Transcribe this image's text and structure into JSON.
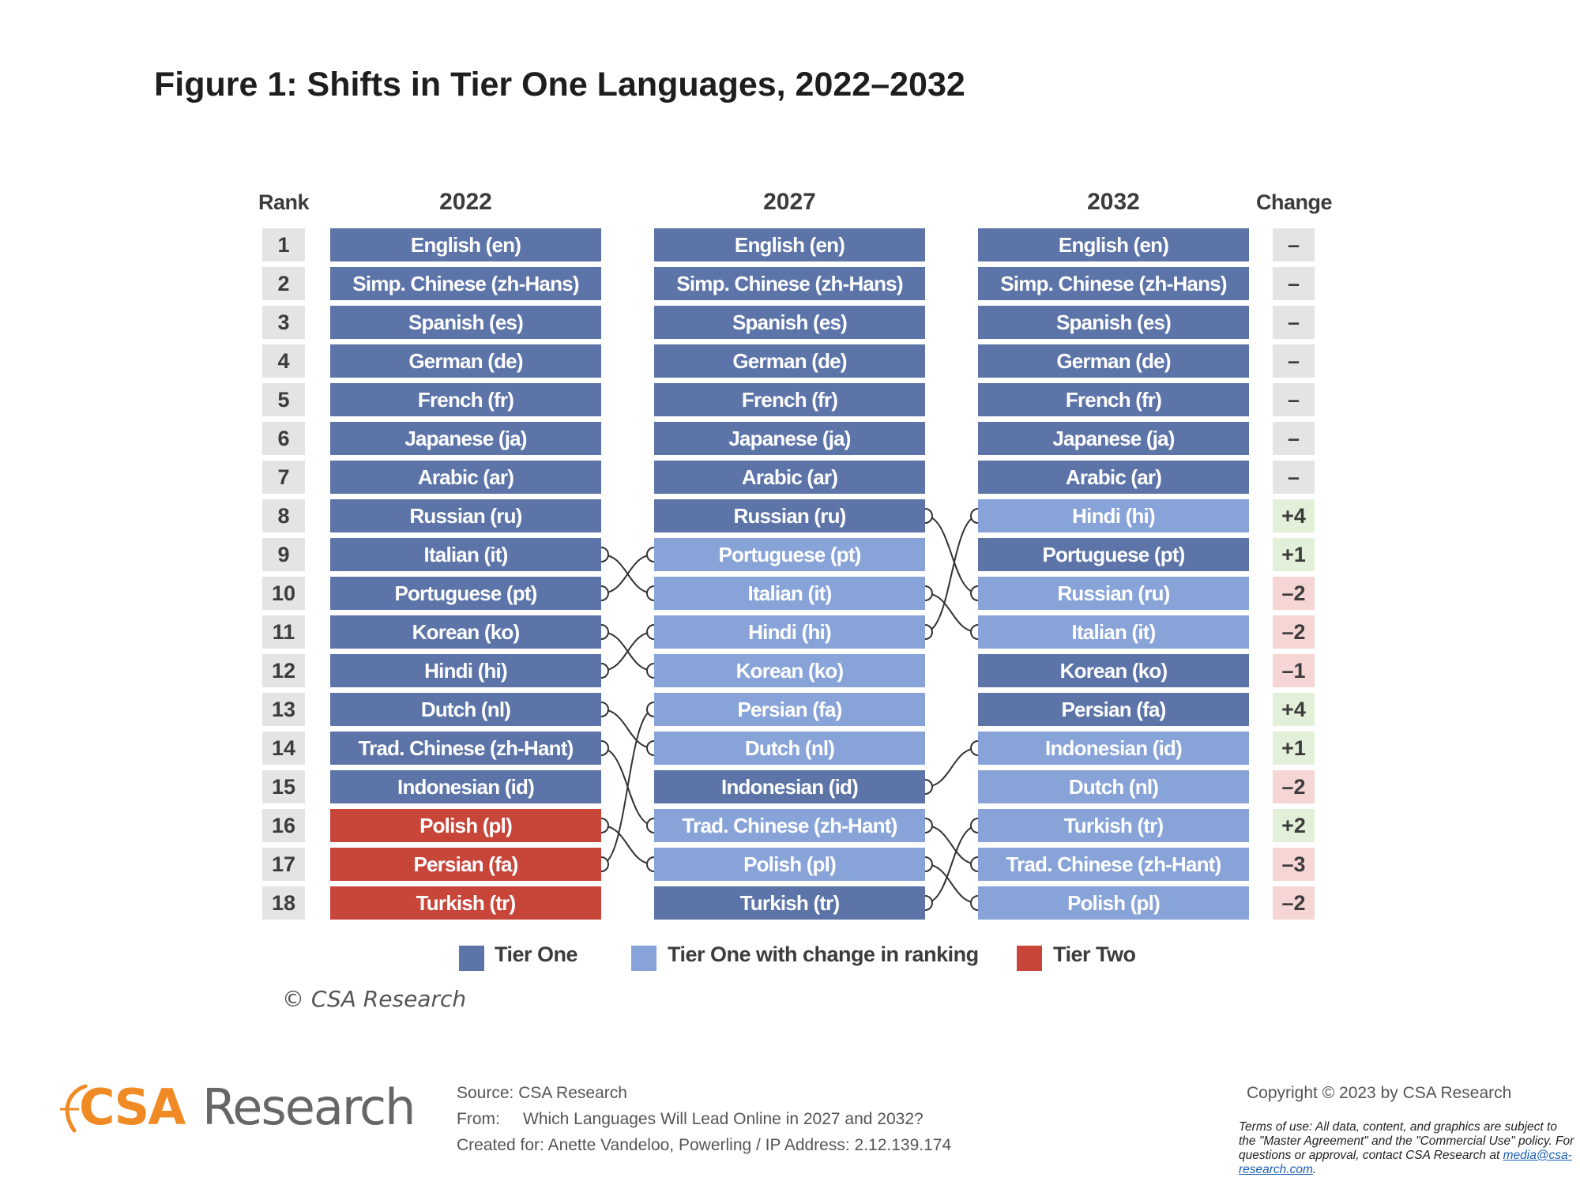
{
  "title": "Figure 1: Shifts in Tier One Languages, 2022–2032",
  "chart_data": {
    "type": "table",
    "headers": {
      "rank": "Rank",
      "col2022": "2022",
      "col2027": "2027",
      "col2032": "2032",
      "change": "Change"
    },
    "ranks": [
      "1",
      "2",
      "3",
      "4",
      "5",
      "6",
      "7",
      "8",
      "9",
      "10",
      "11",
      "12",
      "13",
      "14",
      "15",
      "16",
      "17",
      "18"
    ],
    "col2022": [
      {
        "label": "English (en)",
        "tier": "Tier One"
      },
      {
        "label": "Simp. Chinese (zh-Hans)",
        "tier": "Tier One"
      },
      {
        "label": "Spanish (es)",
        "tier": "Tier One"
      },
      {
        "label": "German (de)",
        "tier": "Tier One"
      },
      {
        "label": "French (fr)",
        "tier": "Tier One"
      },
      {
        "label": "Japanese (ja)",
        "tier": "Tier One"
      },
      {
        "label": "Arabic (ar)",
        "tier": "Tier One"
      },
      {
        "label": "Russian (ru)",
        "tier": "Tier One"
      },
      {
        "label": "Italian (it)",
        "tier": "Tier One"
      },
      {
        "label": "Portuguese (pt)",
        "tier": "Tier One"
      },
      {
        "label": "Korean (ko)",
        "tier": "Tier One"
      },
      {
        "label": "Hindi (hi)",
        "tier": "Tier One"
      },
      {
        "label": "Dutch (nl)",
        "tier": "Tier One"
      },
      {
        "label": "Trad. Chinese (zh-Hant)",
        "tier": "Tier One"
      },
      {
        "label": "Indonesian (id)",
        "tier": "Tier One"
      },
      {
        "label": "Polish (pl)",
        "tier": "Tier Two"
      },
      {
        "label": "Persian (fa)",
        "tier": "Tier Two"
      },
      {
        "label": "Turkish (tr)",
        "tier": "Tier Two"
      }
    ],
    "col2027": [
      {
        "label": "English (en)",
        "tier": "Tier One"
      },
      {
        "label": "Simp. Chinese (zh-Hans)",
        "tier": "Tier One"
      },
      {
        "label": "Spanish (es)",
        "tier": "Tier One"
      },
      {
        "label": "German (de)",
        "tier": "Tier One"
      },
      {
        "label": "French (fr)",
        "tier": "Tier One"
      },
      {
        "label": "Japanese (ja)",
        "tier": "Tier One"
      },
      {
        "label": "Arabic (ar)",
        "tier": "Tier One"
      },
      {
        "label": "Russian (ru)",
        "tier": "Tier One"
      },
      {
        "label": "Portuguese (pt)",
        "tier": "Tier One with change in ranking"
      },
      {
        "label": "Italian (it)",
        "tier": "Tier One with change in ranking"
      },
      {
        "label": "Hindi (hi)",
        "tier": "Tier One with change in ranking"
      },
      {
        "label": "Korean (ko)",
        "tier": "Tier One with change in ranking"
      },
      {
        "label": "Persian (fa)",
        "tier": "Tier One with change in ranking"
      },
      {
        "label": "Dutch (nl)",
        "tier": "Tier One with change in ranking"
      },
      {
        "label": "Indonesian (id)",
        "tier": "Tier One"
      },
      {
        "label": "Trad. Chinese (zh-Hant)",
        "tier": "Tier One with change in ranking"
      },
      {
        "label": "Polish (pl)",
        "tier": "Tier One with change in ranking"
      },
      {
        "label": "Turkish (tr)",
        "tier": "Tier One"
      }
    ],
    "col2032": [
      {
        "label": "English (en)",
        "tier": "Tier One"
      },
      {
        "label": "Simp. Chinese (zh-Hans)",
        "tier": "Tier One"
      },
      {
        "label": "Spanish (es)",
        "tier": "Tier One"
      },
      {
        "label": "German (de)",
        "tier": "Tier One"
      },
      {
        "label": "French (fr)",
        "tier": "Tier One"
      },
      {
        "label": "Japanese (ja)",
        "tier": "Tier One"
      },
      {
        "label": "Arabic (ar)",
        "tier": "Tier One"
      },
      {
        "label": "Hindi (hi)",
        "tier": "Tier One with change in ranking"
      },
      {
        "label": "Portuguese (pt)",
        "tier": "Tier One"
      },
      {
        "label": "Russian (ru)",
        "tier": "Tier One with change in ranking"
      },
      {
        "label": "Italian (it)",
        "tier": "Tier One with change in ranking"
      },
      {
        "label": "Korean (ko)",
        "tier": "Tier One"
      },
      {
        "label": "Persian (fa)",
        "tier": "Tier One"
      },
      {
        "label": "Indonesian (id)",
        "tier": "Tier One with change in ranking"
      },
      {
        "label": "Dutch (nl)",
        "tier": "Tier One with change in ranking"
      },
      {
        "label": "Turkish (tr)",
        "tier": "Tier One with change in ranking"
      },
      {
        "label": "Trad. Chinese (zh-Hant)",
        "tier": "Tier One with change in ranking"
      },
      {
        "label": "Polish (pl)",
        "tier": "Tier One with change in ranking"
      }
    ],
    "change": [
      "–",
      "–",
      "–",
      "–",
      "–",
      "–",
      "–",
      "+4",
      "+1",
      "–2",
      "–2",
      "–1",
      "+4",
      "+1",
      "–2",
      "+2",
      "–3",
      "–2"
    ],
    "links_2022_2027": [
      [
        9,
        10
      ],
      [
        10,
        9
      ],
      [
        11,
        12
      ],
      [
        12,
        11
      ],
      [
        13,
        14
      ],
      [
        14,
        16
      ],
      [
        16,
        17
      ],
      [
        17,
        13
      ]
    ],
    "links_2027_2032": [
      [
        8,
        10
      ],
      [
        10,
        11
      ],
      [
        11,
        8
      ],
      [
        15,
        14
      ],
      [
        16,
        17
      ],
      [
        17,
        18
      ],
      [
        18,
        16
      ]
    ],
    "legend": [
      {
        "label": "Tier One",
        "color": "#5c74a8"
      },
      {
        "label": "Tier One with change in ranking",
        "color": "#87a3d8"
      },
      {
        "label": "Tier Two",
        "color": "#c8453a"
      }
    ]
  },
  "colors": {
    "Tier One": "#5c74a8",
    "Tier One with change in ranking": "#87a3d8",
    "Tier Two": "#c8453a",
    "brand_orange": "#f08a24"
  },
  "chart_copyright": "© CSA Research",
  "footer": {
    "logo_csa": "CSA",
    "logo_research": "Research",
    "source": "Source:  CSA Research",
    "from": "From:     Which Languages Will Lead Online in 2027 and 2032?",
    "created_for": "Created for: Anette Vandeloo, Powerling / IP Address: 2.12.139.174",
    "copyright": "Copyright © 2023 by CSA Research",
    "terms": "Terms of use: All data, content, and graphics are subject to the \"Master Agreement\" and the \"Commercial Use\" policy. For questions or approval, contact CSA Research at",
    "terms_email": "media@csa-research.com",
    "terms_end": "."
  }
}
